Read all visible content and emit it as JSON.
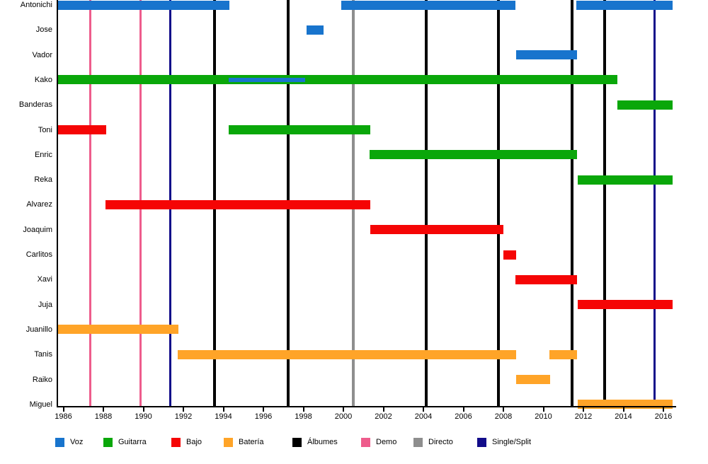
{
  "chart_data": {
    "type": "gantt",
    "title": "",
    "x_axis": {
      "min": 1985.7,
      "max": 2016.6,
      "tick_years": [
        1986,
        1988,
        1990,
        1992,
        1994,
        1996,
        1998,
        2000,
        2002,
        2004,
        2006,
        2008,
        2010,
        2012,
        2014,
        2016
      ]
    },
    "rows": [
      {
        "name": "Antonichi",
        "bars": [
          {
            "role": "voz",
            "start": 1985.7,
            "end": 1994.3
          },
          {
            "role": "voz",
            "start": 1999.9,
            "end": 2008.6
          },
          {
            "role": "voz",
            "start": 2011.65,
            "end": 2016.45
          }
        ]
      },
      {
        "name": "Jose",
        "bars": [
          {
            "role": "voz",
            "start": 1998.15,
            "end": 1999.0
          }
        ]
      },
      {
        "name": "Vador",
        "bars": [
          {
            "role": "voz",
            "start": 2008.65,
            "end": 2011.7
          }
        ]
      },
      {
        "name": "Kako",
        "bars": [
          {
            "role": "guitarra",
            "start": 1985.7,
            "end": 2013.7
          },
          {
            "role": "voz",
            "start": 1994.25,
            "end": 1998.1,
            "overlay": true
          }
        ]
      },
      {
        "name": "Banderas",
        "bars": [
          {
            "role": "guitarra",
            "start": 2013.7,
            "end": 2016.45
          }
        ]
      },
      {
        "name": "Toni",
        "bars": [
          {
            "role": "bajo",
            "start": 1985.7,
            "end": 1988.15
          },
          {
            "role": "guitarra",
            "start": 1994.25,
            "end": 2001.35
          }
        ]
      },
      {
        "name": "Enric",
        "bars": [
          {
            "role": "guitarra",
            "start": 2001.3,
            "end": 2011.7
          }
        ]
      },
      {
        "name": "Reka",
        "bars": [
          {
            "role": "guitarra",
            "start": 2011.7,
            "end": 2016.45
          }
        ]
      },
      {
        "name": "Alvarez",
        "bars": [
          {
            "role": "bajo",
            "start": 1988.1,
            "end": 2001.35
          }
        ]
      },
      {
        "name": "Joaquim",
        "bars": [
          {
            "role": "bajo",
            "start": 2001.35,
            "end": 2008.0
          }
        ]
      },
      {
        "name": "Carlitos",
        "bars": [
          {
            "role": "bajo",
            "start": 2008.0,
            "end": 2008.65
          }
        ]
      },
      {
        "name": "Xavi",
        "bars": [
          {
            "role": "bajo",
            "start": 2008.6,
            "end": 2011.7
          }
        ]
      },
      {
        "name": "Juja",
        "bars": [
          {
            "role": "bajo",
            "start": 2011.7,
            "end": 2016.45
          }
        ]
      },
      {
        "name": "Juanillo",
        "bars": [
          {
            "role": "bateria",
            "start": 1985.7,
            "end": 1991.75
          }
        ]
      },
      {
        "name": "Tanis",
        "bars": [
          {
            "role": "bateria",
            "start": 1991.7,
            "end": 2008.65
          },
          {
            "role": "bateria",
            "start": 2010.3,
            "end": 2011.7
          }
        ]
      },
      {
        "name": "Raiko",
        "bars": [
          {
            "role": "bateria",
            "start": 2008.65,
            "end": 2010.35
          }
        ]
      },
      {
        "name": "Miguel",
        "bars": [
          {
            "role": "bateria",
            "start": 2011.7,
            "end": 2016.45
          }
        ]
      }
    ],
    "events": [
      {
        "role": "demo",
        "year": 1987.35
      },
      {
        "role": "demo",
        "year": 1989.85
      },
      {
        "role": "single_split",
        "year": 1991.35
      },
      {
        "role": "albumes",
        "year": 1993.55
      },
      {
        "role": "albumes",
        "year": 1997.25
      },
      {
        "role": "directo",
        "year": 2000.5
      },
      {
        "role": "albumes",
        "year": 2004.15
      },
      {
        "role": "albumes",
        "year": 2007.75
      },
      {
        "role": "albumes",
        "year": 2011.45
      },
      {
        "role": "albumes",
        "year": 2013.05
      },
      {
        "role": "single_split",
        "year": 2015.55
      }
    ],
    "legend": [
      {
        "label": "Voz",
        "role": "voz"
      },
      {
        "label": "Guitarra",
        "role": "guitarra"
      },
      {
        "label": "Bajo",
        "role": "bajo"
      },
      {
        "label": "Batería",
        "role": "bateria"
      },
      {
        "label": "Álbumes",
        "role": "albumes"
      },
      {
        "label": "Demo",
        "role": "demo"
      },
      {
        "label": "Directo",
        "role": "directo"
      },
      {
        "label": "Single/Split",
        "role": "single_split"
      }
    ],
    "colors": {
      "voz": "#1874CD",
      "guitarra": "#0AA70A",
      "bajo": "#F50505",
      "bateria": "#FFA428",
      "albumes": "#000000",
      "demo": "#EE5C8C",
      "directo": "#8E8E8E",
      "single_split": "#120C8A"
    },
    "legend_position": "bottom",
    "grid": false
  }
}
